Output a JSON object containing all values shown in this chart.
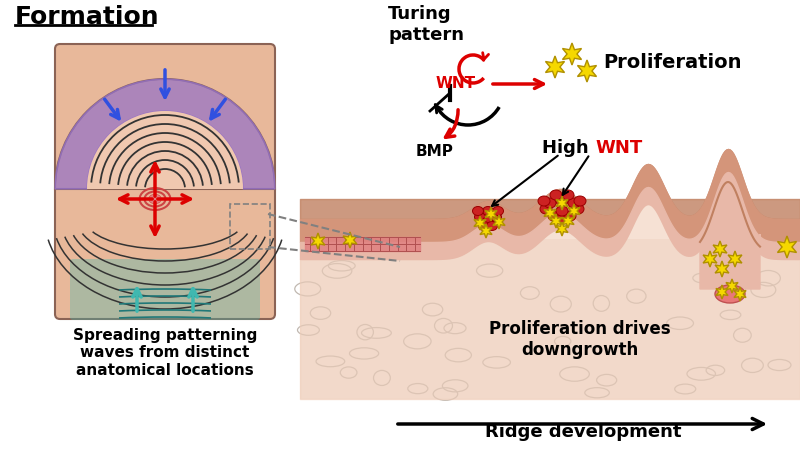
{
  "title_formation": "Formation",
  "text_turing": "Turing\npattern",
  "text_proliferation": "Proliferation",
  "text_wnt": "WNT",
  "text_bmp": "BMP",
  "text_high_wnt1": "High ",
  "text_high_wnt2": "WNT",
  "text_proliferation_drives": "Proliferation drives\ndowngrowth",
  "text_ridge": "Ridge development",
  "text_spreading": "Spreading patterning\nwaves from distinct\nanatomical locations",
  "bg_color": "#ffffff",
  "skin_color": "#e8b89a",
  "skin_dark": "#c8856a",
  "skin_light": "#f5d5c0",
  "purple_color": "#9370c8",
  "teal_color": "#40b8b0",
  "red_color": "#dd0000",
  "blue_color": "#3050e0",
  "cell_outline": "#bbbbbb",
  "ridge_pink": "#e87878",
  "star_yellow": "#f5d800",
  "star_outline": "#b09000"
}
